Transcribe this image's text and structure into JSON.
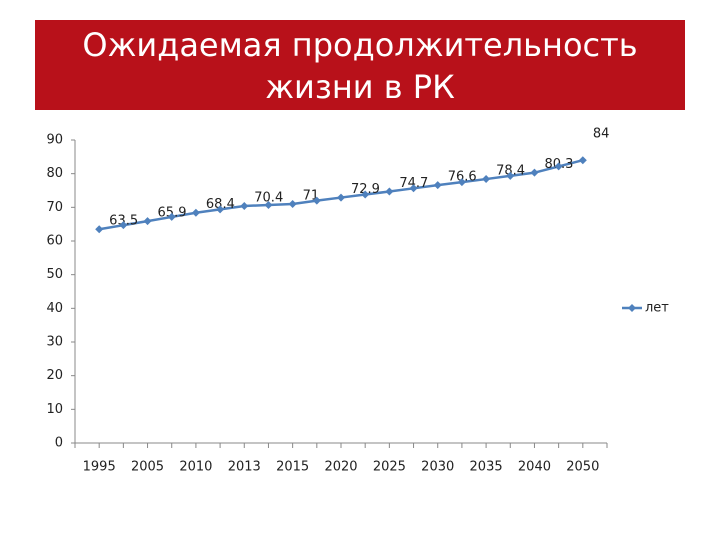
{
  "chart_data": {
    "type": "line",
    "title": [
      "Ожидаемая продолжительность",
      "жизни в РК"
    ],
    "categories": [
      "1995",
      null,
      "2005",
      null,
      "2010",
      null,
      "2013",
      null,
      "2015",
      null,
      "2020",
      null,
      "2025",
      null,
      "2030",
      null,
      "2035",
      null,
      "2040",
      null,
      "2050"
    ],
    "series": [
      {
        "name": "лет",
        "color": "#4f81bd",
        "values": [
          63.5,
          64.7,
          65.9,
          67.15,
          68.4,
          69.4,
          70.4,
          70.7,
          71,
          72,
          72.9,
          73.8,
          74.7,
          75.65,
          76.6,
          77.5,
          78.4,
          79.35,
          80.3,
          82.15,
          84
        ],
        "value_labels": [
          "63.5",
          null,
          "65.9",
          null,
          "68.4",
          null,
          "70.4",
          null,
          "71",
          null,
          "72.9",
          null,
          "74.7",
          null,
          "76.6",
          null,
          "78.4",
          null,
          "80.3",
          null,
          "84"
        ]
      }
    ],
    "ylim": [
      0,
      90
    ],
    "yticks": [
      0,
      10,
      20,
      30,
      40,
      50,
      60,
      70,
      80,
      90
    ],
    "grid": false,
    "legend": "right"
  }
}
